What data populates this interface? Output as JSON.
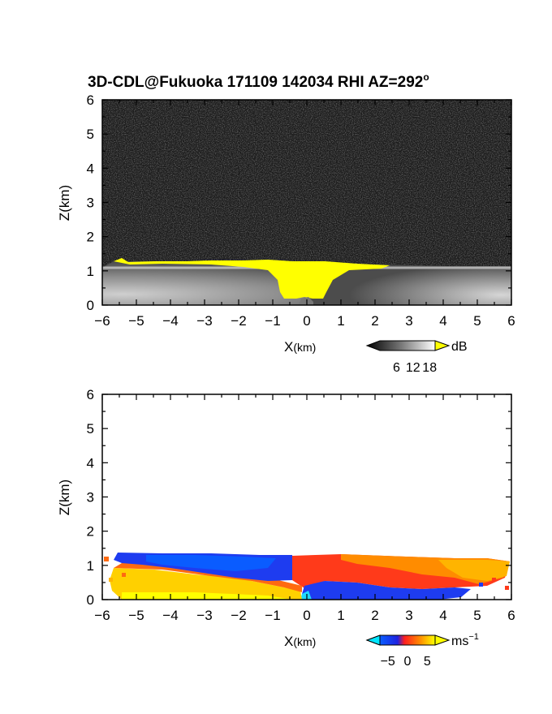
{
  "title": "3D-CDL@Fukuoka 171109 142034 RHI AZ=292",
  "title_sup": "o",
  "chart_data": [
    {
      "type": "heatmap",
      "name": "backscatter",
      "xlabel_main": "X",
      "xlabel_unit": "(km)",
      "ylabel": "Z(km)",
      "xlim": [
        -6,
        6
      ],
      "ylim": [
        0,
        6
      ],
      "x_ticks": [
        -6,
        -5,
        -4,
        -3,
        -2,
        -1,
        0,
        1,
        2,
        3,
        4,
        5,
        6
      ],
      "y_ticks": [
        0,
        1,
        2,
        3,
        4,
        5,
        6
      ],
      "colorbar": {
        "unit": "dB",
        "ticks": [
          6,
          12,
          18
        ],
        "range": [
          0,
          20
        ],
        "low_color": "#000000",
        "high_color": "#ffff00"
      },
      "background_color": "#1c1c1c",
      "echo_top_km": 1.2,
      "saturated_core": {
        "x_range_km": [
          -1.2,
          1.0
        ],
        "top_km": 1.2,
        "bottom_km": 0.1
      },
      "grid": false
    },
    {
      "type": "heatmap",
      "name": "doppler_velocity",
      "xlabel_main": "X",
      "xlabel_unit": "(km)",
      "ylabel": "Z(km)",
      "xlim": [
        -6,
        6
      ],
      "ylim": [
        0,
        6
      ],
      "x_ticks": [
        -6,
        -5,
        -4,
        -3,
        -2,
        -1,
        0,
        1,
        2,
        3,
        4,
        5,
        6
      ],
      "y_ticks": [
        0,
        1,
        2,
        3,
        4,
        5,
        6
      ],
      "colorbar": {
        "unit_main": "ms",
        "unit_sup": "−1",
        "ticks": [
          "−5",
          "0",
          "5"
        ],
        "tick_values": [
          -5,
          0,
          5
        ],
        "range": [
          -7,
          7
        ],
        "colors": [
          "#00e5ff",
          "#0a5cff",
          "#1e22e0",
          "#ff1e1e",
          "#ff8c00",
          "#ffff00"
        ]
      },
      "regions": [
        {
          "label": "upper negative layer",
          "x_range_km": [
            -5.6,
            -0.5
          ],
          "z_range_km": [
            0.7,
            1.35
          ],
          "velocity_ms": -6
        },
        {
          "label": "upper positive layer",
          "x_range_km": [
            -0.5,
            6.0
          ],
          "z_range_km": [
            0.5,
            1.25
          ],
          "velocity_ms": 3
        },
        {
          "label": "lower positive layer",
          "x_range_km": [
            -5.8,
            -0.5
          ],
          "z_range_km": [
            0.0,
            0.7
          ],
          "velocity_ms": 6
        },
        {
          "label": "lower negative layer",
          "x_range_km": [
            0.0,
            4.5
          ],
          "z_range_km": [
            0.0,
            0.5
          ],
          "velocity_ms": -6
        }
      ],
      "grid": false
    }
  ]
}
